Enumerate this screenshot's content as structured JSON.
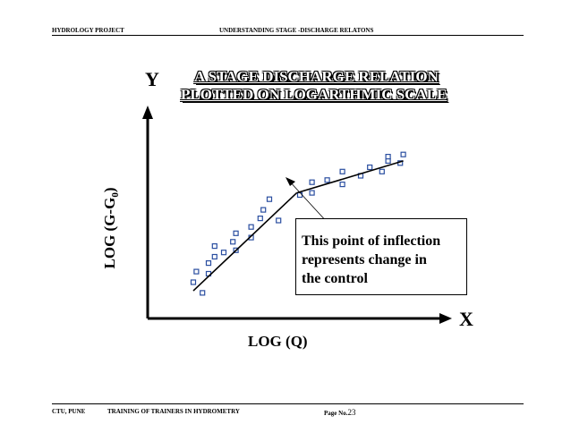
{
  "header": {
    "left": "HYDROLOGY PROJECT",
    "center": "UNDERSTANDING STAGE -DISCHARGE RELATONS"
  },
  "footer": {
    "left": "CTU, PUNE",
    "center": "TRAINING OF TRAINERS IN HYDROMETRY",
    "page_prefix": "Page No.",
    "page_number": "23"
  },
  "diagram": {
    "title_line1": "A STAGE DISCHARGE RELATION",
    "title_line2": "PLOTTED ON  LOGARTHMIC SCALE ",
    "y_letter": "Y",
    "x_letter": "X",
    "x_label": "LOG (Q)",
    "y_label_main": "LOG (G-G",
    "y_label_sub": "0",
    "y_label_end": ")",
    "callout_lines": [
      "This point of inflection",
      "represents change in",
      "the control"
    ],
    "point_color": "#2a4ea0",
    "line_color": "#000000"
  },
  "chart_data": {
    "type": "scatter",
    "title": "A STAGE DISCHARGE RELATION PLOTTED ON  LOGARTHMIC SCALE ",
    "xlabel": "LOG (Q)",
    "ylabel": "LOG (G-G0)",
    "xlim": [
      0,
      10
    ],
    "ylim": [
      0,
      10
    ],
    "grid": false,
    "points": [
      [
        1.5,
        1.7
      ],
      [
        1.8,
        1.2
      ],
      [
        1.6,
        2.2
      ],
      [
        2.0,
        2.1
      ],
      [
        2.0,
        2.6
      ],
      [
        2.2,
        2.9
      ],
      [
        2.2,
        3.4
      ],
      [
        2.5,
        3.1
      ],
      [
        2.8,
        3.6
      ],
      [
        2.9,
        3.2
      ],
      [
        2.9,
        4.0
      ],
      [
        3.4,
        3.8
      ],
      [
        3.4,
        4.3
      ],
      [
        3.7,
        4.7
      ],
      [
        3.8,
        5.1
      ],
      [
        4.0,
        5.6
      ],
      [
        4.3,
        4.6
      ],
      [
        5.0,
        5.8
      ],
      [
        5.4,
        5.9
      ],
      [
        5.4,
        6.4
      ],
      [
        5.9,
        6.5
      ],
      [
        6.4,
        6.3
      ],
      [
        6.4,
        6.9
      ],
      [
        7.0,
        6.7
      ],
      [
        7.3,
        7.1
      ],
      [
        7.7,
        6.9
      ],
      [
        7.9,
        7.4
      ],
      [
        7.9,
        7.6
      ],
      [
        8.3,
        7.3
      ],
      [
        8.4,
        7.7
      ]
    ],
    "fit_segments": [
      [
        [
          1.5,
          1.3
        ],
        [
          4.9,
          5.9
        ]
      ],
      [
        [
          4.9,
          5.9
        ],
        [
          8.4,
          7.4
        ]
      ]
    ],
    "inflection_point": [
      4.9,
      5.9
    ]
  }
}
